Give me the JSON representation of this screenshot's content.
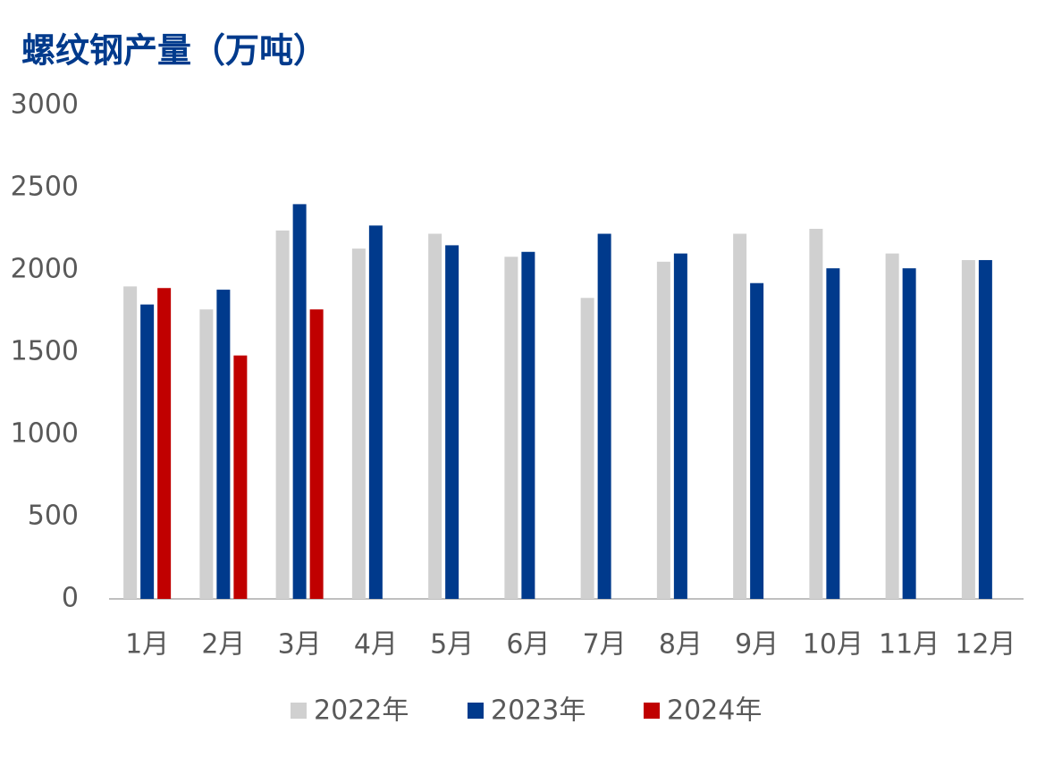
{
  "chart_data": {
    "type": "bar",
    "title": "螺纹钢产量（万吨）",
    "categories": [
      "1月",
      "2月",
      "3月",
      "4月",
      "5月",
      "6月",
      "7月",
      "8月",
      "9月",
      "10月",
      "11月",
      "12月"
    ],
    "series": [
      {
        "name": "2022年",
        "color": "#d0d0d0",
        "values": [
          1900,
          1760,
          2240,
          2130,
          2220,
          2080,
          1830,
          2050,
          2220,
          2250,
          2100,
          2060
        ]
      },
      {
        "name": "2023年",
        "color": "#003a8c",
        "values": [
          1790,
          1880,
          2400,
          2270,
          2150,
          2110,
          2220,
          2100,
          1920,
          2010,
          2010,
          2060
        ]
      },
      {
        "name": "2024年",
        "color": "#c00000",
        "values": [
          1890,
          1480,
          1760,
          null,
          null,
          null,
          null,
          null,
          null,
          null,
          null,
          null
        ]
      }
    ],
    "ylim": [
      0,
      3000
    ],
    "yticks": [
      0,
      500,
      1000,
      1500,
      2000,
      2500,
      3000
    ],
    "grid": false,
    "legend": "bottom"
  }
}
